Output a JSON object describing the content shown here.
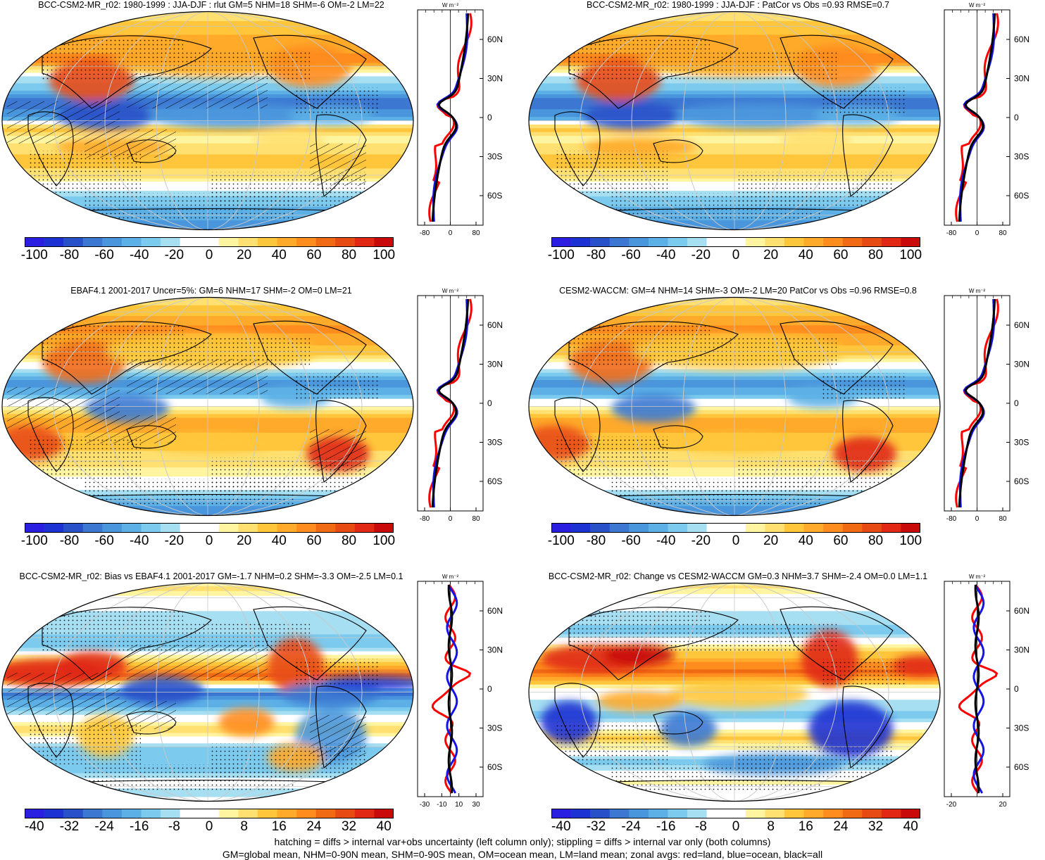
{
  "panels": [
    {
      "title": "BCC-CSM2-MR_r02: 1980-1999 : JJA-DJF : rlut GM=5 NHM=18 SHM=-6 OM=-2 LM=22",
      "kind": "abs",
      "hatch": true,
      "zonal_xticks": [
        "-80",
        "0",
        "80"
      ],
      "cbar_labels": [
        "-100",
        "-80",
        "-60",
        "-40",
        "-20",
        "0",
        "20",
        "40",
        "60",
        "80",
        "100"
      ]
    },
    {
      "title": "BCC-CSM2-MR_r02: 1980-1999 : JJA-DJF : PatCor vs Obs =0.93 RMSE=0.7",
      "kind": "abs",
      "hatch": false,
      "zonal_xticks": [
        "-80",
        "0",
        "80"
      ],
      "cbar_labels": [
        "-100",
        "-80",
        "-60",
        "-40",
        "-20",
        "0",
        "20",
        "40",
        "60",
        "80",
        "100"
      ]
    },
    {
      "title": "EBAF4.1 2001-2017 Uncer=5%: GM=6 NHM=17 SHM=-2 OM=0 LM=21",
      "kind": "obs",
      "hatch": true,
      "zonal_xticks": [
        "-80",
        "0",
        "80"
      ],
      "cbar_labels": [
        "-100",
        "-80",
        "-60",
        "-40",
        "-20",
        "0",
        "20",
        "40",
        "60",
        "80",
        "100"
      ]
    },
    {
      "title": "CESM2-WACCM: GM=4 NHM=14 SHM=-3 OM=-2 LM=20 PatCor vs Obs =0.96 RMSE=0.8",
      "kind": "obs",
      "hatch": false,
      "zonal_xticks": [
        "-80",
        "0",
        "80"
      ],
      "cbar_labels": [
        "-100",
        "-80",
        "-60",
        "-40",
        "-20",
        "0",
        "20",
        "40",
        "60",
        "80",
        "100"
      ]
    },
    {
      "title": "BCC-CSM2-MR_r02: Bias vs EBAF4.1 2001-2017 GM=-1.7 NHM=0.2 SHM=-3.3 OM=-2.5 LM=0.1",
      "kind": "bias",
      "hatch": true,
      "zonal_xticks": [
        "-30",
        "-10",
        "10",
        "30"
      ],
      "cbar_labels": [
        "-40",
        "-32",
        "-24",
        "-16",
        "-8",
        "0",
        "8",
        "16",
        "24",
        "32",
        "40"
      ]
    },
    {
      "title": "BCC-CSM2-MR_r02: Change vs CESM2-WACCM GM=0.3 NHM=3.7 SHM=-2.4 OM=0.0 LM=1.1",
      "kind": "change",
      "hatch": false,
      "zonal_xticks": [
        "-20",
        "20"
      ],
      "cbar_labels": [
        "-40",
        "-32",
        "-24",
        "-16",
        "-8",
        "0",
        "8",
        "16",
        "24",
        "32",
        "40"
      ]
    }
  ],
  "zonal_units": "W m⁻²",
  "lat_labels": [
    "60N",
    "30N",
    "0",
    "30S",
    "60S"
  ],
  "palette": [
    "#2a1ee0",
    "#1c32d2",
    "#2850c8",
    "#3c78d2",
    "#4a96dc",
    "#5cb0e6",
    "#7ccaee",
    "#a6def2",
    "#ffffff",
    "#ffffff",
    "#fff4a0",
    "#ffe070",
    "#ffc63c",
    "#ffaa2a",
    "#ff8c1e",
    "#f06a14",
    "#e84a14",
    "#e02814",
    "#c80a0a"
  ],
  "line_colors": {
    "land": "#ff0000",
    "ocean": "#1414e6",
    "all": "#000000"
  },
  "footer": [
    "hatching = diffs > internal var+obs uncertainty (left column only); stippling = diffs > internal var only (both columns)",
    "GM=global mean, NHM=0-90N mean, SHM=0-90S mean, OM=ocean mean, LM=land mean; zonal avgs: red=land, blue=ocean, black=all"
  ]
}
